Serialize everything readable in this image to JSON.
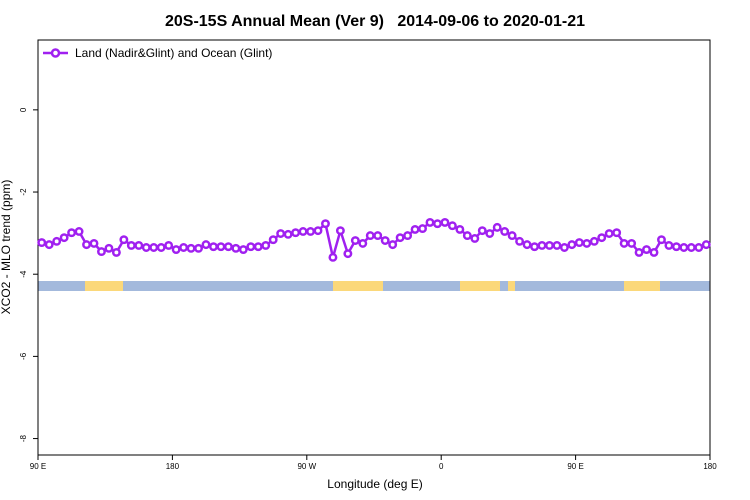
{
  "chart_data": {
    "type": "line",
    "title": "20S-15S Annual Mean (Ver 9)   2014-09-06 to 2020-01-21",
    "xlabel": "Longitude (deg E)",
    "ylabel": "XCO2 - MLO trend (ppm)",
    "xlim": [
      90,
      540
    ],
    "ylim": [
      -8.4,
      1.7
    ],
    "xticks": [
      {
        "value": 90,
        "label": "90 E"
      },
      180,
      {
        "value": 270,
        "label": "90 W"
      },
      {
        "value": 360,
        "label": "0"
      },
      {
        "value": 450,
        "label": "90 E"
      },
      {
        "value": 540,
        "label": "180"
      }
    ],
    "yticks": [
      0,
      -2,
      -4,
      -6,
      -8
    ],
    "legend": "upper left",
    "x": [
      92.5,
      97.5,
      102.5,
      107.5,
      112.5,
      117.5,
      122.5,
      127.5,
      132.5,
      137.5,
      142.5,
      147.5,
      152.5,
      157.5,
      162.5,
      167.5,
      172.5,
      177.5,
      182.5,
      187.5,
      192.5,
      197.5,
      202.5,
      207.5,
      212.5,
      217.5,
      222.5,
      227.5,
      232.5,
      237.5,
      242.5,
      247.5,
      252.5,
      257.5,
      262.5,
      267.5,
      272.5,
      277.5,
      282.5,
      287.5,
      292.5,
      297.5,
      302.5,
      307.5,
      312.5,
      317.5,
      322.5,
      327.5,
      332.5,
      337.5,
      342.5,
      347.5,
      352.5,
      357.5,
      362.5,
      367.5,
      372.5,
      377.5,
      382.5,
      387.5,
      392.5,
      397.5,
      402.5,
      407.5,
      412.5,
      417.5,
      422.5,
      427.5,
      432.5,
      437.5,
      442.5,
      447.5,
      452.5,
      457.5,
      462.5,
      467.5,
      472.5,
      477.5,
      482.5,
      487.5,
      492.5,
      497.5,
      502.5,
      507.5,
      512.5,
      517.5,
      522.5,
      527.5,
      532.5,
      537.5
    ],
    "series": [
      {
        "name": "Land (Nadir&Glint) and Ocean (Glint)",
        "color": "#a020f0",
        "values": [
          -3.23,
          -3.28,
          -3.2,
          -3.11,
          -2.99,
          -2.96,
          -3.28,
          -3.25,
          -3.45,
          -3.37,
          -3.47,
          -3.16,
          -3.3,
          -3.3,
          -3.35,
          -3.35,
          -3.35,
          -3.3,
          -3.4,
          -3.35,
          -3.37,
          -3.37,
          -3.28,
          -3.33,
          -3.33,
          -3.33,
          -3.37,
          -3.4,
          -3.33,
          -3.33,
          -3.3,
          -3.16,
          -3.01,
          -3.03,
          -2.99,
          -2.96,
          -2.96,
          -2.94,
          -2.77,
          -3.59,
          -2.94,
          -3.5,
          -3.18,
          -3.25,
          -3.06,
          -3.06,
          -3.18,
          -3.28,
          -3.11,
          -3.06,
          -2.91,
          -2.89,
          -2.74,
          -2.77,
          -2.74,
          -2.82,
          -2.91,
          -3.06,
          -3.13,
          -2.94,
          -3.01,
          -2.86,
          -2.96,
          -3.06,
          -3.2,
          -3.28,
          -3.33,
          -3.3,
          -3.3,
          -3.3,
          -3.35,
          -3.28,
          -3.23,
          -3.25,
          -3.2,
          -3.11,
          -3.01,
          -2.99,
          -3.25,
          -3.25,
          -3.47,
          -3.4,
          -3.47,
          -3.16,
          -3.3,
          -3.33,
          -3.35,
          -3.35,
          -3.35,
          -3.28
        ]
      }
    ]
  }
}
